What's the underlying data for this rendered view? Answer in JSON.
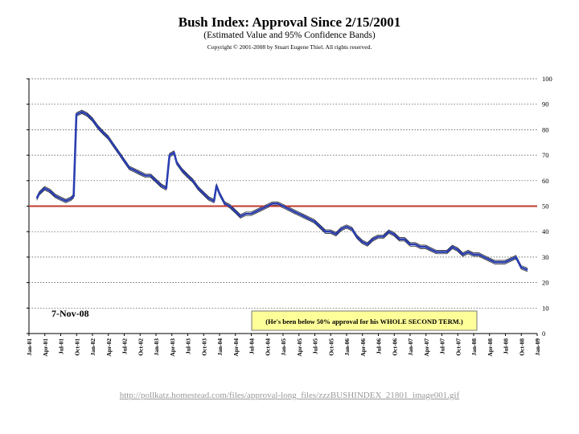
{
  "chart_data": {
    "type": "line",
    "title": "Bush Index:  Approval Since 2/15/2001",
    "subtitle": "(Estimated Value and 95% Confidence Bands)",
    "copyright": "Copyright © 2001-2008 by Stuart Eugene Thiel.  All rights reserved.",
    "ylim": [
      0,
      100
    ],
    "y_ticks": [
      "0",
      "10",
      "20",
      "30",
      "40",
      "50",
      "60",
      "70",
      "80",
      "90",
      "100"
    ],
    "x_ticks": [
      "Jan-01",
      "Apr-01",
      "Jul-01",
      "Oct-01",
      "Jan-02",
      "Apr-02",
      "Jul-02",
      "Oct-02",
      "Jan-03",
      "Apr-03",
      "Jul-03",
      "Oct-03",
      "Jan-04",
      "Apr-04",
      "Jul-04",
      "Oct-04",
      "Jan-05",
      "Apr-05",
      "Jul-05",
      "Oct-05",
      "Jan-06",
      "Apr-06",
      "Jul-06",
      "Oct-06",
      "Jan-07",
      "Apr-07",
      "Jul-07",
      "Oct-07",
      "Jan-08",
      "Apr-08",
      "Jul-08",
      "Oct-08",
      "Jan-09"
    ],
    "grid": "horizontal-dotted",
    "reference_line": {
      "value": 50,
      "color": "#c0392b"
    },
    "series": [
      {
        "color": "#2b3fb0",
        "x": [
          "2001-02-15",
          "2001-03-01",
          "2001-04-01",
          "2001-05-01",
          "2001-06-01",
          "2001-07-01",
          "2001-08-01",
          "2001-09-01",
          "2001-09-15",
          "2001-10-01",
          "2001-11-01",
          "2001-12-01",
          "2002-01-01",
          "2002-02-01",
          "2002-03-01",
          "2002-04-01",
          "2002-05-01",
          "2002-06-01",
          "2002-07-01",
          "2002-08-01",
          "2002-09-01",
          "2002-10-01",
          "2002-11-01",
          "2002-12-01",
          "2003-01-01",
          "2003-02-01",
          "2003-03-01",
          "2003-03-20",
          "2003-04-15",
          "2003-05-01",
          "2003-06-01",
          "2003-07-01",
          "2003-08-01",
          "2003-09-01",
          "2003-10-01",
          "2003-11-01",
          "2003-12-01",
          "2003-12-15",
          "2004-01-01",
          "2004-02-01",
          "2004-03-01",
          "2004-04-01",
          "2004-05-01",
          "2004-06-01",
          "2004-07-01",
          "2004-08-01",
          "2004-09-01",
          "2004-10-01",
          "2004-11-01",
          "2004-12-01",
          "2005-01-01",
          "2005-02-01",
          "2005-03-01",
          "2005-04-01",
          "2005-05-01",
          "2005-06-01",
          "2005-07-01",
          "2005-08-01",
          "2005-09-01",
          "2005-10-01",
          "2005-11-01",
          "2005-12-01",
          "2006-01-01",
          "2006-02-01",
          "2006-03-01",
          "2006-04-01",
          "2006-05-01",
          "2006-06-01",
          "2006-07-01",
          "2006-08-01",
          "2006-09-01",
          "2006-10-01",
          "2006-11-01",
          "2006-12-01",
          "2007-01-01",
          "2007-02-01",
          "2007-03-01",
          "2007-04-01",
          "2007-05-01",
          "2007-06-01",
          "2007-07-01",
          "2007-08-01",
          "2007-09-01",
          "2007-10-01",
          "2007-11-01",
          "2007-12-01",
          "2008-01-01",
          "2008-02-01",
          "2008-03-01",
          "2008-04-01",
          "2008-05-01",
          "2008-06-01",
          "2008-07-01",
          "2008-08-01",
          "2008-09-01",
          "2008-10-01",
          "2008-11-07"
        ],
        "y": [
          53,
          55,
          57,
          56,
          54,
          53,
          52,
          53,
          54,
          86,
          87,
          86,
          84,
          81,
          79,
          77,
          74,
          71,
          68,
          65,
          64,
          63,
          62,
          62,
          60,
          58,
          57,
          70,
          71,
          67,
          64,
          62,
          60,
          57,
          55,
          53,
          52,
          58,
          55,
          51,
          50,
          48,
          46,
          47,
          47,
          48,
          49,
          50,
          51,
          51,
          50,
          49,
          48,
          47,
          46,
          45,
          44,
          42,
          40,
          40,
          39,
          41,
          42,
          41,
          38,
          36,
          35,
          37,
          38,
          38,
          40,
          39,
          37,
          37,
          35,
          35,
          34,
          34,
          33,
          32,
          32,
          32,
          34,
          33,
          31,
          32,
          31,
          31,
          30,
          29,
          28,
          28,
          28,
          29,
          30,
          26,
          25
        ]
      }
    ],
    "annotation": "(He's been below 50% approval for his WHOLE SECOND TERM.)",
    "date_label": "7-Nov-08"
  },
  "footer": {
    "url": "http://pollkatz.homestead.com/files/approval-long_files/zzzBUSHINDEX_21801_image001.gif"
  }
}
